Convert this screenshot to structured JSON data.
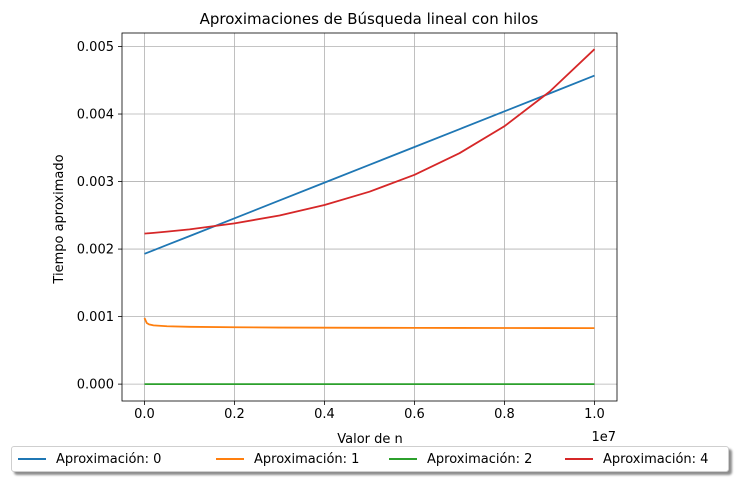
{
  "chart_data": {
    "type": "line",
    "title": "Aproximaciones de Búsqueda lineal con hilos",
    "xlabel": "Valor de n",
    "ylabel": "Tiempo aproximado",
    "x_offset_label": "1e7",
    "xlim": [
      -0.05,
      1.05
    ],
    "ylim": [
      -0.00025,
      0.0052
    ],
    "x_ticks": [
      0.0,
      0.2,
      0.4,
      0.6,
      0.8,
      1.0
    ],
    "x_tick_labels": [
      "0.0",
      "0.2",
      "0.4",
      "0.6",
      "0.8",
      "1.0"
    ],
    "y_ticks": [
      0.0,
      0.001,
      0.002,
      0.003,
      0.004,
      0.005
    ],
    "y_tick_labels": [
      "0.000",
      "0.001",
      "0.002",
      "0.003",
      "0.004",
      "0.005"
    ],
    "grid": true,
    "legend_placement": "bottom",
    "x": [
      0.0,
      0.005,
      0.01,
      0.02,
      0.05,
      0.1,
      0.2,
      0.3,
      0.4,
      0.5,
      0.6,
      0.7,
      0.8,
      0.9,
      1.0
    ],
    "series": [
      {
        "name": "Aproximación: 0",
        "color": "#1f77b4",
        "values": [
          0.00193,
          0.001943,
          0.001956,
          0.001982,
          0.002061,
          0.002192,
          0.002456,
          0.00272,
          0.002984,
          0.003248,
          0.003512,
          0.003776,
          0.00404,
          0.004304,
          0.00457
        ]
      },
      {
        "name": "Aproximación: 1",
        "color": "#ff7f0e",
        "values": [
          0.00098,
          0.000905,
          0.000885,
          0.00087,
          0.000857,
          0.000849,
          0.000842,
          0.000838,
          0.000836,
          0.000834,
          0.000833,
          0.000832,
          0.000831,
          0.00083,
          0.000829
        ]
      },
      {
        "name": "Aproximación: 2",
        "color": "#2ca02c",
        "values": [
          0.0,
          0.0,
          0.0,
          0.0,
          0.0,
          0.0,
          0.0,
          0.0,
          0.0,
          0.0,
          0.0,
          0.0,
          0.0,
          0.0,
          0.0
        ]
      },
      {
        "name": "Aproximación: 4",
        "color": "#d62728",
        "values": [
          0.00223,
          0.002232,
          0.002235,
          0.00224,
          0.002258,
          0.002292,
          0.00238,
          0.002498,
          0.002652,
          0.00285,
          0.0031,
          0.00342,
          0.00382,
          0.00433,
          0.00496
        ]
      }
    ]
  }
}
